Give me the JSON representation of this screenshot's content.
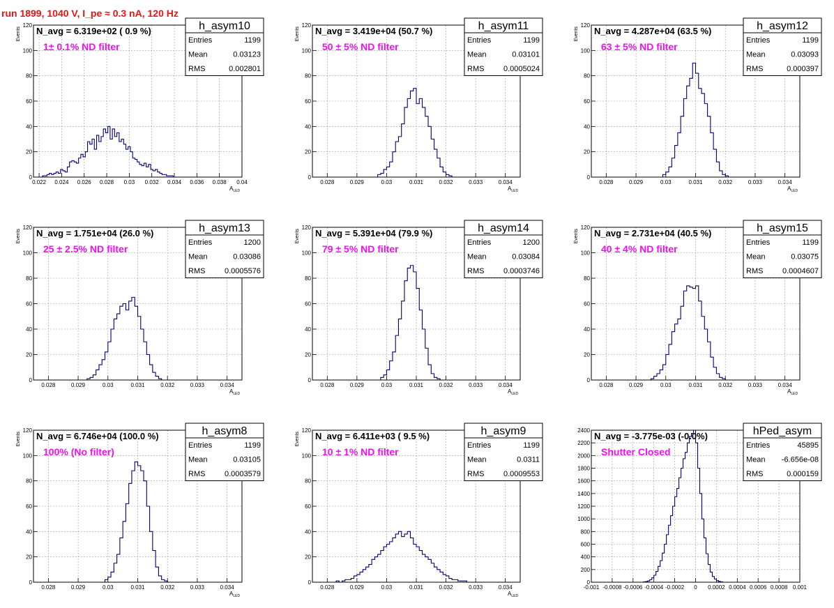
{
  "page_title": "run 1899,  1040 V, I_pe ≈ 0.3 nA, 120 Hz",
  "colors": {
    "title": "#ee1111",
    "histogram_line": "#00007a",
    "filter_text": "#ee11ee",
    "grid": "#999999"
  },
  "chart_data": [
    {
      "type": "bar",
      "name": "h_asym10",
      "nav_text": "N_avg = 6.319e+02 ( 0.9 %)",
      "filter_label": "1± 0.1% ND filter",
      "stats": {
        "entries_label": "Entries",
        "entries": "1199",
        "mean_label": "Mean",
        "mean": "0.03123",
        "rms_label": "RMS",
        "rms": "0.002801"
      },
      "ylabel": "Events",
      "xlabel": "A",
      "xlabel_sub": "LED",
      "xlim": [
        0.0215,
        0.04
      ],
      "ylim": [
        0,
        120
      ],
      "xticks": [
        0.022,
        0.024,
        0.026,
        0.028,
        0.03,
        0.032,
        0.034,
        0.036,
        0.038,
        0.04
      ],
      "xtick_labels": [
        "0.022",
        "0.024",
        "0.026",
        "0.028",
        "0.03",
        "0.032",
        "0.034",
        "0.036",
        "0.038",
        "0.04"
      ],
      "yticks": [
        0,
        20,
        40,
        60,
        80,
        100,
        120
      ],
      "ytick_labels": [
        "0",
        "20",
        "40",
        "60",
        "80",
        "100",
        "120"
      ],
      "bin_start": 0.0223,
      "bin_width": 0.0002,
      "values": [
        1,
        1,
        2,
        3,
        2,
        3,
        4,
        3,
        6,
        5,
        4,
        8,
        12,
        13,
        12,
        11,
        15,
        18,
        16,
        20,
        28,
        26,
        30,
        22,
        33,
        28,
        32,
        38,
        35,
        40,
        30,
        38,
        32,
        35,
        28,
        30,
        26,
        22,
        24,
        20,
        15,
        14,
        12,
        10,
        9,
        11,
        8,
        10,
        6,
        5,
        6,
        4,
        3,
        2,
        2,
        1,
        1,
        1
      ]
    },
    {
      "type": "bar",
      "name": "h_asym11",
      "nav_text": "N_avg = 3.419e+04 (50.7 %)",
      "filter_label": "50 ± 5% ND filter",
      "stats": {
        "entries_label": "Entries",
        "entries": "1199",
        "mean_label": "Mean",
        "mean": "0.03101",
        "rms_label": "RMS",
        "rms": "0.0005024"
      },
      "ylabel": "Events",
      "xlabel": "A",
      "xlabel_sub": "LED",
      "xlim": [
        0.0275,
        0.0345
      ],
      "ylim": [
        0,
        120
      ],
      "xticks": [
        0.028,
        0.029,
        0.03,
        0.031,
        0.032,
        0.033,
        0.034
      ],
      "xtick_labels": [
        "0.028",
        "0.029",
        "0.03",
        "0.031",
        "0.032",
        "0.033",
        "0.034"
      ],
      "yticks": [
        0,
        20,
        40,
        60,
        80,
        100,
        120
      ],
      "ytick_labels": [
        "0",
        "20",
        "40",
        "60",
        "80",
        "100",
        "120"
      ],
      "bin_start": 0.0297,
      "bin_width": 0.0001,
      "values": [
        2,
        3,
        6,
        8,
        12,
        20,
        28,
        32,
        42,
        55,
        62,
        68,
        70,
        58,
        62,
        55,
        48,
        40,
        30,
        22,
        15,
        8,
        4,
        2,
        1
      ]
    },
    {
      "type": "bar",
      "name": "h_asym12",
      "nav_text": "N_avg = 4.287e+04 (63.5 %)",
      "filter_label": "63 ± 5% ND filter",
      "stats": {
        "entries_label": "Entries",
        "entries": "1199",
        "mean_label": "Mean",
        "mean": "0.03093",
        "rms_label": "RMS",
        "rms": "0.000397"
      },
      "ylabel": "Events",
      "xlabel": "A",
      "xlabel_sub": "LED",
      "xlim": [
        0.0275,
        0.0345
      ],
      "ylim": [
        0,
        120
      ],
      "xticks": [
        0.028,
        0.029,
        0.03,
        0.031,
        0.032,
        0.033,
        0.034
      ],
      "xtick_labels": [
        "0.028",
        "0.029",
        "0.03",
        "0.031",
        "0.032",
        "0.033",
        "0.034"
      ],
      "yticks": [
        0,
        20,
        40,
        60,
        80,
        100,
        120
      ],
      "ytick_labels": [
        "0",
        "20",
        "40",
        "60",
        "80",
        "100",
        "120"
      ],
      "bin_start": 0.0299,
      "bin_width": 0.0001,
      "values": [
        2,
        4,
        8,
        15,
        25,
        35,
        48,
        62,
        72,
        78,
        90,
        82,
        70,
        66,
        58,
        48,
        35,
        22,
        12,
        5,
        2,
        1
      ]
    },
    {
      "type": "bar",
      "name": "h_asym13",
      "nav_text": "N_avg = 1.751e+04 (26.0 %)",
      "filter_label": "25 ± 2.5% ND filter",
      "stats": {
        "entries_label": "Entries",
        "entries": "1200",
        "mean_label": "Mean",
        "mean": "0.03086",
        "rms_label": "RMS",
        "rms": "0.0005576"
      },
      "ylabel": "Events",
      "xlabel": "A",
      "xlabel_sub": "LED",
      "xlim": [
        0.0275,
        0.0345
      ],
      "ylim": [
        0,
        120
      ],
      "xticks": [
        0.028,
        0.029,
        0.03,
        0.031,
        0.032,
        0.033,
        0.034
      ],
      "xtick_labels": [
        "0.028",
        "0.029",
        "0.03",
        "0.031",
        "0.032",
        "0.033",
        "0.034"
      ],
      "yticks": [
        0,
        20,
        40,
        60,
        80,
        100,
        120
      ],
      "ytick_labels": [
        "0",
        "20",
        "40",
        "60",
        "80",
        "100",
        "120"
      ],
      "bin_start": 0.0293,
      "bin_width": 0.0001,
      "values": [
        1,
        2,
        4,
        8,
        12,
        16,
        22,
        30,
        40,
        48,
        52,
        58,
        60,
        55,
        62,
        65,
        58,
        50,
        40,
        30,
        20,
        12,
        6,
        3,
        1
      ]
    },
    {
      "type": "bar",
      "name": "h_asym14",
      "nav_text": "N_avg = 5.391e+04 (79.9 %)",
      "filter_label": "79 ± 5% ND filter",
      "stats": {
        "entries_label": "Entries",
        "entries": "1200",
        "mean_label": "Mean",
        "mean": "0.03084",
        "rms_label": "RMS",
        "rms": "0.0003746"
      },
      "ylabel": "Events",
      "xlabel": "A",
      "xlabel_sub": "LED",
      "xlim": [
        0.0275,
        0.0345
      ],
      "ylim": [
        0,
        120
      ],
      "xticks": [
        0.028,
        0.029,
        0.03,
        0.031,
        0.032,
        0.033,
        0.034
      ],
      "xtick_labels": [
        "0.028",
        "0.029",
        "0.03",
        "0.031",
        "0.032",
        "0.033",
        "0.034"
      ],
      "yticks": [
        0,
        20,
        40,
        60,
        80,
        100,
        120
      ],
      "ytick_labels": [
        "0",
        "20",
        "40",
        "60",
        "80",
        "100",
        "120"
      ],
      "bin_start": 0.0298,
      "bin_width": 0.0001,
      "values": [
        2,
        4,
        8,
        15,
        22,
        35,
        48,
        62,
        78,
        88,
        90,
        85,
        72,
        55,
        40,
        25,
        12,
        5,
        2,
        1
      ]
    },
    {
      "type": "bar",
      "name": "h_asym15",
      "nav_text": "N_avg = 2.731e+04 (40.5 %)",
      "filter_label": "40 ± 4% ND filter",
      "stats": {
        "entries_label": "Entries",
        "entries": "1199",
        "mean_label": "Mean",
        "mean": "0.03075",
        "rms_label": "RMS",
        "rms": "0.0004607"
      },
      "ylabel": "Events",
      "xlabel": "A",
      "xlabel_sub": "LED",
      "xlim": [
        0.0275,
        0.0345
      ],
      "ylim": [
        0,
        120
      ],
      "xticks": [
        0.028,
        0.029,
        0.03,
        0.031,
        0.032,
        0.033,
        0.034
      ],
      "xtick_labels": [
        "0.028",
        "0.029",
        "0.03",
        "0.031",
        "0.032",
        "0.033",
        "0.034"
      ],
      "yticks": [
        0,
        20,
        40,
        60,
        80,
        100,
        120
      ],
      "ytick_labels": [
        "0",
        "20",
        "40",
        "60",
        "80",
        "100",
        "120"
      ],
      "bin_start": 0.0295,
      "bin_width": 0.0001,
      "values": [
        1,
        3,
        5,
        8,
        12,
        20,
        28,
        38,
        44,
        48,
        58,
        70,
        74,
        73,
        72,
        74,
        62,
        50,
        40,
        30,
        18,
        10,
        5,
        2,
        1
      ]
    },
    {
      "type": "bar",
      "name": "h_asym8",
      "nav_text": "N_avg = 6.746e+04 (100.0 %)",
      "filter_label": "100% (No filter)",
      "stats": {
        "entries_label": "Entries",
        "entries": "1199",
        "mean_label": "Mean",
        "mean": "0.03105",
        "rms_label": "RMS",
        "rms": "0.0003579"
      },
      "ylabel": "Events",
      "xlabel": "A",
      "xlabel_sub": "LED",
      "xlim": [
        0.0275,
        0.0345
      ],
      "ylim": [
        0,
        120
      ],
      "xticks": [
        0.028,
        0.029,
        0.03,
        0.031,
        0.032,
        0.033,
        0.034
      ],
      "xtick_labels": [
        "0.028",
        "0.029",
        "0.03",
        "0.031",
        "0.032",
        "0.033",
        "0.034"
      ],
      "yticks": [
        0,
        20,
        40,
        60,
        80,
        100,
        120
      ],
      "ytick_labels": [
        "0",
        "20",
        "40",
        "60",
        "80",
        "100",
        "120"
      ],
      "bin_start": 0.0299,
      "bin_width": 0.0001,
      "values": [
        2,
        4,
        8,
        15,
        22,
        35,
        48,
        62,
        78,
        88,
        95,
        92,
        88,
        80,
        60,
        40,
        25,
        12,
        5,
        2,
        1
      ]
    },
    {
      "type": "bar",
      "name": "h_asym9",
      "nav_text": "N_avg = 6.411e+03 ( 9.5 %)",
      "filter_label": "10 ± 1% ND filter",
      "stats": {
        "entries_label": "Entries",
        "entries": "1199",
        "mean_label": "Mean",
        "mean": "0.0311",
        "rms_label": "RMS",
        "rms": "0.0009553"
      },
      "ylabel": "Events",
      "xlabel": "A",
      "xlabel_sub": "LED",
      "xlim": [
        0.0275,
        0.0345
      ],
      "ylim": [
        0,
        120
      ],
      "xticks": [
        0.028,
        0.029,
        0.03,
        0.031,
        0.032,
        0.033,
        0.034
      ],
      "xtick_labels": [
        "0.028",
        "0.029",
        "0.03",
        "0.031",
        "0.032",
        "0.033",
        "0.034"
      ],
      "yticks": [
        0,
        20,
        40,
        60,
        80,
        100,
        120
      ],
      "ytick_labels": [
        "0",
        "20",
        "40",
        "60",
        "80",
        "100",
        "120"
      ],
      "bin_start": 0.0283,
      "bin_width": 0.0001,
      "values": [
        1,
        0,
        1,
        2,
        2,
        3,
        5,
        6,
        8,
        10,
        12,
        14,
        18,
        20,
        22,
        25,
        28,
        30,
        32,
        35,
        38,
        40,
        36,
        38,
        40,
        35,
        30,
        28,
        25,
        22,
        20,
        18,
        15,
        12,
        10,
        8,
        6,
        5,
        3,
        2,
        2,
        1,
        1,
        1
      ]
    },
    {
      "type": "bar",
      "name": "hPed_asym",
      "nav_text": "N_avg = -3.775e-03 (-0.0%)",
      "filter_label": "Shutter Closed",
      "stats": {
        "entries_label": "Entries",
        "entries": "45895",
        "mean_label": "Mean",
        "mean": "-6.656e-08",
        "rms_label": "RMS",
        "rms": "0.000159"
      },
      "ylabel": "",
      "xlabel": "",
      "xlabel_sub": "",
      "xlim": [
        -0.001,
        0.001
      ],
      "ylim": [
        0,
        2400
      ],
      "xticks": [
        -0.001,
        -0.0008,
        -0.0006,
        -0.0004,
        -0.0002,
        0,
        0.0002,
        0.0004,
        0.0006,
        0.0008,
        0.001
      ],
      "xtick_labels": [
        "-0.001",
        "-0.0008",
        "-0.0006",
        "-0.0004",
        "-0.0002",
        "0",
        "0.0002",
        "0.0004",
        "0.0006",
        "0.0008",
        "0.001"
      ],
      "yticks": [
        0,
        200,
        400,
        600,
        800,
        1000,
        1200,
        1400,
        1600,
        1800,
        2000,
        2200,
        2400
      ],
      "ytick_labels": [
        "0",
        "200",
        "400",
        "600",
        "800",
        "1000",
        "1200",
        "1400",
        "1600",
        "1800",
        "2000",
        "2200",
        "2400"
      ],
      "bin_start": -0.0005,
      "bin_width": 2e-05,
      "values": [
        5,
        10,
        20,
        40,
        70,
        110,
        170,
        250,
        340,
        460,
        600,
        750,
        900,
        1050,
        1200,
        1350,
        1480,
        1650,
        1800,
        1950,
        2050,
        2200,
        2300,
        2350,
        2400,
        2200,
        1800,
        1400,
        1000,
        700,
        450,
        280,
        160,
        90,
        50,
        25,
        12,
        5
      ]
    }
  ]
}
